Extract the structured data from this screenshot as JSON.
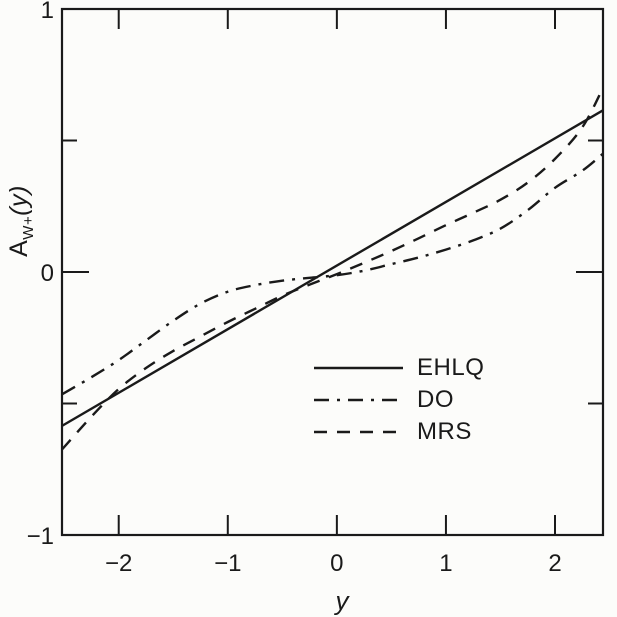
{
  "colors": {
    "ink": "#1a1a1a",
    "background": "#fcfcfa"
  },
  "y_axis_title": {
    "base": "A",
    "sub": "W+",
    "arg": "(y)"
  },
  "legend": {
    "entries": [
      {
        "label": "EHLQ",
        "style": "solid"
      },
      {
        "label": "DO",
        "style": "dash-dot"
      },
      {
        "label": "MRS",
        "style": "dashed"
      }
    ]
  },
  "chart_data": {
    "type": "line",
    "title": "",
    "xlabel": "y",
    "ylabel": "A_W+(y)",
    "xlim": [
      -2.52,
      2.44
    ],
    "ylim": [
      -1,
      1
    ],
    "grid": false,
    "legend_position": "lower right inside",
    "x_ticks": [
      {
        "v": -2,
        "label": "−2"
      },
      {
        "v": -1,
        "label": "−1"
      },
      {
        "v": 0,
        "label": "0"
      },
      {
        "v": 1,
        "label": "1"
      },
      {
        "v": 2,
        "label": "2"
      }
    ],
    "y_ticks_major": [
      {
        "v": 1,
        "label": "1"
      },
      {
        "v": 0,
        "label": "0"
      },
      {
        "v": -1,
        "label": "−1"
      }
    ],
    "y_ticks_minor": [
      0.5,
      -0.5
    ],
    "series": [
      {
        "name": "EHLQ",
        "style": "solid",
        "x": [
          -2.52,
          2.44
        ],
        "y": [
          -0.585,
          0.615
        ]
      },
      {
        "name": "DO",
        "style": "dash-dot",
        "x": [
          -2.52,
          -2.25,
          -2,
          -1.75,
          -1.5,
          -1.25,
          -1,
          -0.75,
          -0.5,
          -0.25,
          0,
          0.25,
          0.5,
          0.75,
          1,
          1.25,
          1.5,
          1.75,
          2,
          2.25,
          2.44
        ],
        "y": [
          -0.465,
          -0.4,
          -0.335,
          -0.26,
          -0.185,
          -0.12,
          -0.075,
          -0.05,
          -0.033,
          -0.022,
          -0.012,
          0.005,
          0.03,
          0.055,
          0.085,
          0.12,
          0.165,
          0.235,
          0.32,
          0.385,
          0.45
        ]
      },
      {
        "name": "MRS",
        "style": "dashed",
        "x": [
          -2.52,
          -2.25,
          -2,
          -1.75,
          -1.5,
          -1.25,
          -1,
          -0.75,
          -0.5,
          -0.25,
          0,
          0.25,
          0.5,
          0.75,
          1,
          1.25,
          1.5,
          1.75,
          2,
          2.25,
          2.44
        ],
        "y": [
          -0.675,
          -0.55,
          -0.445,
          -0.365,
          -0.3,
          -0.245,
          -0.19,
          -0.14,
          -0.09,
          -0.048,
          -0.008,
          0.035,
          0.08,
          0.128,
          0.178,
          0.225,
          0.275,
          0.34,
          0.43,
          0.55,
          0.7
        ]
      }
    ]
  }
}
